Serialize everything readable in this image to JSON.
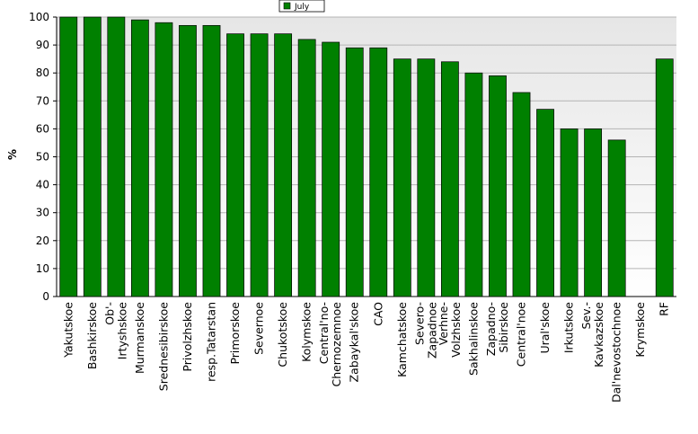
{
  "chart_data": {
    "type": "bar",
    "y_label": "%",
    "categories": [
      "Yakutskoe",
      "Bashkirskoe",
      "Ob'-Irtyshskoe",
      "Murmanskoe",
      "Srednesibirskoe",
      "Privolzhskoe",
      "resp.Tatarstan",
      "Primorskoe",
      "Severnoe",
      "Chukotskoe",
      "Kolymskoe",
      "Central'no-Chernozemnoe",
      "Zabaykal'skoe",
      "CAO",
      "Kamchatskoe",
      "Severo-Zapadnoe",
      "Verhne-Volzhskoe",
      "Sakhalinskoe",
      "Zapadno-Sibirskoe",
      "Central'noe",
      "Ural'skoe",
      "Irkutskoe",
      "Sev.-Kavkazskoe",
      "Dal'nevostochnoe",
      "Krymskoe",
      "RF"
    ],
    "series": [
      {
        "name": "July",
        "color": "#008000",
        "values": [
          100,
          100,
          100,
          99,
          98,
          97,
          97,
          94,
          94,
          94,
          92,
          91,
          89,
          89,
          85,
          85,
          84,
          80,
          79,
          73,
          67,
          60,
          60,
          56,
          null,
          85
        ]
      }
    ],
    "ylim": [
      0,
      100
    ],
    "yticks": [
      0,
      10,
      20,
      30,
      40,
      50,
      60,
      70,
      80,
      90,
      100
    ],
    "grid": true,
    "legend": "top"
  }
}
